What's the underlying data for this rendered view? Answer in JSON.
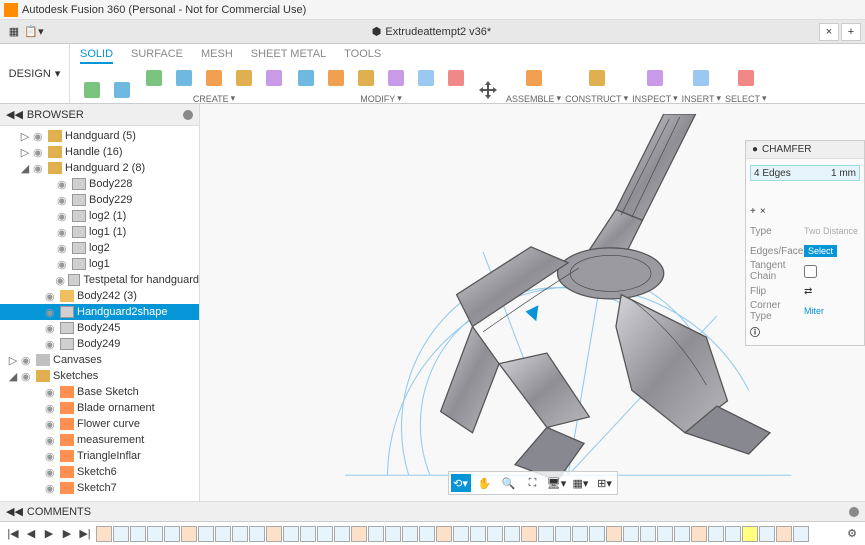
{
  "app": {
    "title": "Autodesk Fusion 360 (Personal - Not for Commercial Use)"
  },
  "doc": {
    "name": "Extrudeattempt2 v36*"
  },
  "design_label": "DESIGN",
  "workspace_tabs": [
    "SOLID",
    "SURFACE",
    "MESH",
    "SHEET METAL",
    "TOOLS"
  ],
  "active_tab": 0,
  "tool_groups": [
    {
      "label": "CREATE",
      "icons": 5
    },
    {
      "label": "MODIFY",
      "icons": 6
    },
    {
      "label": "ASSEMBLE",
      "icons": 1
    },
    {
      "label": "CONSTRUCT",
      "icons": 1
    },
    {
      "label": "INSPECT",
      "icons": 1
    },
    {
      "label": "INSERT",
      "icons": 1
    },
    {
      "label": "SELECT",
      "icons": 1
    }
  ],
  "browser": {
    "title": "BROWSER",
    "items": [
      {
        "indent": 1,
        "arrow": "▷",
        "eye": true,
        "icon": "folder",
        "label": "Handguard (5)"
      },
      {
        "indent": 1,
        "arrow": "▷",
        "eye": true,
        "icon": "folder",
        "label": "Handle (16)"
      },
      {
        "indent": 1,
        "arrow": "◢",
        "eye": true,
        "icon": "folder",
        "label": "Handguard 2 (8)"
      },
      {
        "indent": 3,
        "arrow": "",
        "eye": true,
        "icon": "body",
        "label": "Body228"
      },
      {
        "indent": 3,
        "arrow": "",
        "eye": true,
        "icon": "body",
        "label": "Body229"
      },
      {
        "indent": 3,
        "arrow": "",
        "eye": true,
        "icon": "body",
        "label": "log2 (1)"
      },
      {
        "indent": 3,
        "arrow": "",
        "eye": true,
        "icon": "body",
        "label": "log1 (1)"
      },
      {
        "indent": 3,
        "arrow": "",
        "eye": true,
        "icon": "body",
        "label": "log2"
      },
      {
        "indent": 3,
        "arrow": "",
        "eye": true,
        "icon": "body",
        "label": "log1"
      },
      {
        "indent": 3,
        "arrow": "",
        "eye": true,
        "icon": "body",
        "label": "Testpetal for handguard"
      },
      {
        "indent": 2,
        "arrow": "",
        "eye": true,
        "icon": "comp",
        "label": "Body242 (3)"
      },
      {
        "indent": 2,
        "arrow": "",
        "eye": true,
        "icon": "body",
        "label": "Handguard2shape",
        "selected": true
      },
      {
        "indent": 2,
        "arrow": "",
        "eye": true,
        "icon": "body",
        "label": "Body245"
      },
      {
        "indent": 2,
        "arrow": "",
        "eye": true,
        "icon": "body",
        "label": "Body249"
      },
      {
        "indent": 0,
        "arrow": "▷",
        "eye": true,
        "icon": "canvas",
        "label": "Canvases"
      },
      {
        "indent": 0,
        "arrow": "◢",
        "eye": true,
        "icon": "folder",
        "label": "Sketches"
      },
      {
        "indent": 2,
        "arrow": "",
        "eye": true,
        "icon": "sketch",
        "label": "Base Sketch"
      },
      {
        "indent": 2,
        "arrow": "",
        "eye": true,
        "icon": "sketch",
        "label": "Blade ornament"
      },
      {
        "indent": 2,
        "arrow": "",
        "eye": true,
        "icon": "sketch",
        "label": "Flower curve"
      },
      {
        "indent": 2,
        "arrow": "",
        "eye": true,
        "icon": "sketch",
        "label": "measurement"
      },
      {
        "indent": 2,
        "arrow": "",
        "eye": true,
        "icon": "sketch",
        "label": "TriangleInflar"
      },
      {
        "indent": 2,
        "arrow": "",
        "eye": true,
        "icon": "sketch",
        "label": "Sketch6"
      },
      {
        "indent": 2,
        "arrow": "",
        "eye": true,
        "icon": "sketch",
        "label": "Sketch7"
      }
    ]
  },
  "panel": {
    "title": "CHAMFER",
    "edges_label": "4 Edges",
    "edges_value": "1 mm",
    "type_label": "Type",
    "type_value": "Two Distance",
    "edgefaces_label": "Edges/Faces",
    "select_label": "Select",
    "tangent_label": "Tangent Chain",
    "flip_label": "Flip",
    "corner_label": "Corner Type",
    "corner_value": "Miter"
  },
  "comments": {
    "title": "COMMENTS"
  },
  "colors": {
    "accent": "#0696d7",
    "model_fill": "#a8a8ac",
    "model_stroke": "#555",
    "sketch_line": "#6bb8e8"
  },
  "timeline_count": 42
}
